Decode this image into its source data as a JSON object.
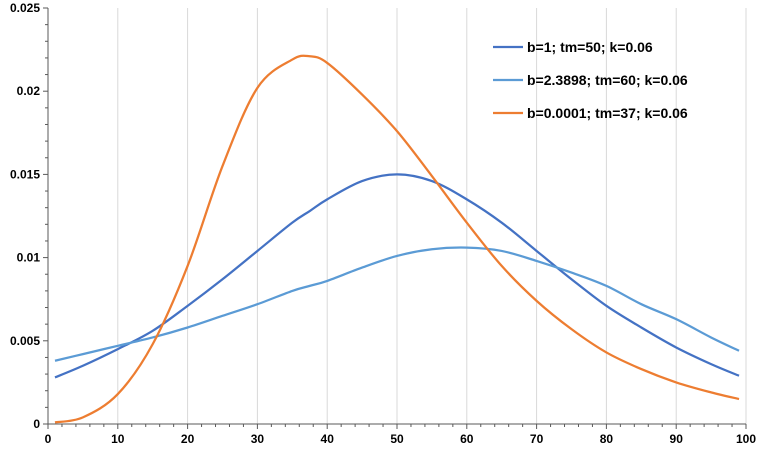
{
  "chart_data": {
    "type": "line",
    "title": "",
    "xlabel": "",
    "ylabel": "",
    "xlim": [
      0,
      100
    ],
    "ylim": [
      0,
      0.025
    ],
    "x_ticks": [
      0,
      10,
      20,
      30,
      40,
      50,
      60,
      70,
      80,
      90,
      100
    ],
    "y_ticks": [
      0,
      0.005,
      0.01,
      0.015,
      0.02,
      0.025
    ],
    "x_tick_labels": [
      "0",
      "10",
      "20",
      "30",
      "40",
      "50",
      "60",
      "70",
      "80",
      "90",
      "100"
    ],
    "y_tick_labels": [
      "0",
      "0.005",
      "0.01",
      "0.015",
      "0.02",
      "0.025"
    ],
    "grid": "vertical",
    "legend_position": "top-right",
    "x": [
      1,
      5,
      10,
      15,
      20,
      25,
      30,
      35,
      37.5,
      40,
      45,
      50,
      55,
      60,
      65,
      70,
      75,
      80,
      85,
      90,
      95,
      99
    ],
    "series": [
      {
        "name": "b=1; tm=50; k=0.06",
        "color": "#4472C4",
        "values": [
          0.0028,
          0.0035,
          0.0045,
          0.0056,
          0.0071,
          0.0087,
          0.0104,
          0.0121,
          0.0128,
          0.0135,
          0.0146,
          0.015,
          0.0146,
          0.0135,
          0.0121,
          0.0104,
          0.0087,
          0.0071,
          0.0058,
          0.0046,
          0.0036,
          0.0029
        ]
      },
      {
        "name": "b=2.3898; tm=60; k=0.06",
        "color": "#5B9BD5",
        "values": [
          0.0038,
          0.0042,
          0.0047,
          0.0052,
          0.0058,
          0.0065,
          0.0072,
          0.008,
          0.0083,
          0.0086,
          0.0094,
          0.0101,
          0.0105,
          0.0106,
          0.0104,
          0.0098,
          0.0091,
          0.0083,
          0.0072,
          0.0063,
          0.0052,
          0.0044
        ]
      },
      {
        "name": "b=0.0001; tm=37; k=0.06",
        "color": "#ED7D31",
        "values": [
          0.0001,
          0.0004,
          0.0018,
          0.0048,
          0.0095,
          0.0155,
          0.0202,
          0.0219,
          0.0221,
          0.0217,
          0.0198,
          0.0176,
          0.0149,
          0.0121,
          0.0095,
          0.0074,
          0.0057,
          0.0043,
          0.0033,
          0.0025,
          0.0019,
          0.0015
        ]
      }
    ]
  }
}
